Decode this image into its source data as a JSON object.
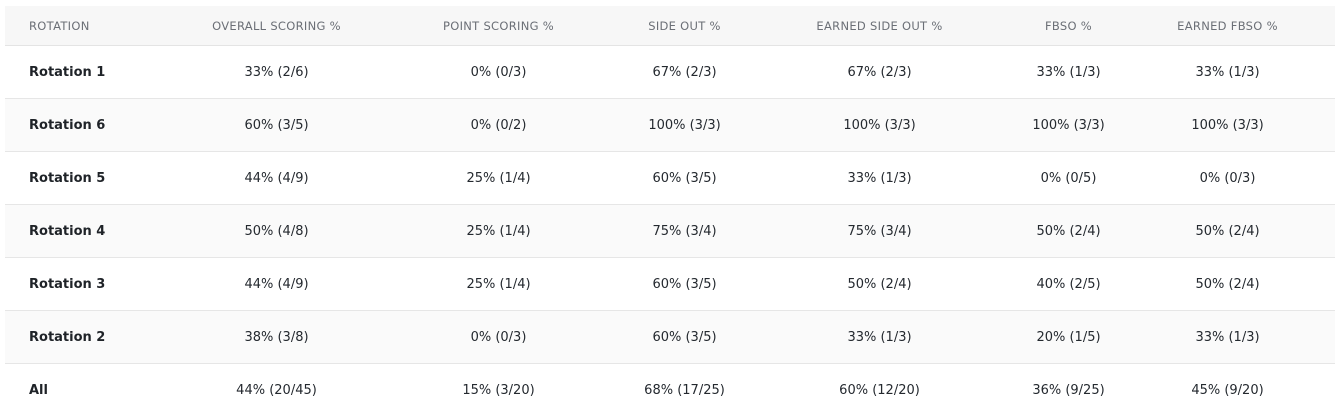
{
  "table": {
    "columns": [
      "ROTATION",
      "OVERALL SCORING %",
      "POINT SCORING %",
      "SIDE OUT %",
      "EARNED SIDE OUT %",
      "FBSO %",
      "EARNED FBSO %"
    ],
    "rows": [
      [
        "Rotation 1",
        "33% (2/6)",
        "0% (0/3)",
        "67% (2/3)",
        "67% (2/3)",
        "33% (1/3)",
        "33% (1/3)"
      ],
      [
        "Rotation 6",
        "60% (3/5)",
        "0% (0/2)",
        "100% (3/3)",
        "100% (3/3)",
        "100% (3/3)",
        "100% (3/3)"
      ],
      [
        "Rotation 5",
        "44% (4/9)",
        "25% (1/4)",
        "60% (3/5)",
        "33% (1/3)",
        "0% (0/5)",
        "0% (0/3)"
      ],
      [
        "Rotation 4",
        "50% (4/8)",
        "25% (1/4)",
        "75% (3/4)",
        "75% (3/4)",
        "50% (2/4)",
        "50% (2/4)"
      ],
      [
        "Rotation 3",
        "44% (4/9)",
        "25% (1/4)",
        "60% (3/5)",
        "50% (2/4)",
        "40% (2/5)",
        "50% (2/4)"
      ],
      [
        "Rotation 2",
        "38% (3/8)",
        "0% (0/3)",
        "60% (3/5)",
        "33% (1/3)",
        "20% (1/5)",
        "33% (1/3)"
      ],
      [
        "All",
        "44% (20/45)",
        "15% (3/20)",
        "68% (17/25)",
        "60% (12/20)",
        "36% (9/25)",
        "45% (9/20)"
      ]
    ]
  }
}
